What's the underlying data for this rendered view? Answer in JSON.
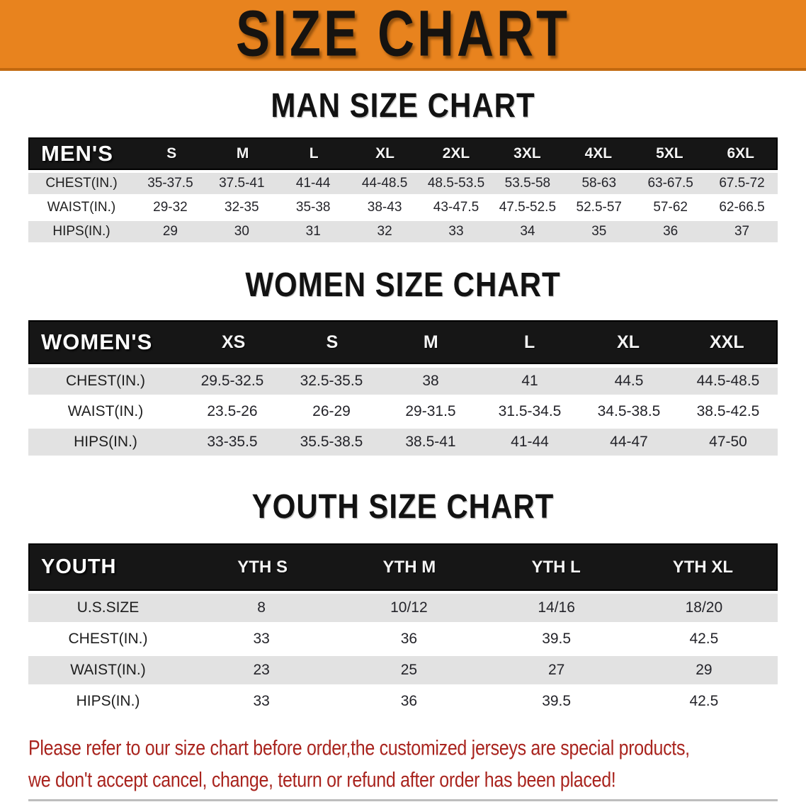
{
  "banner": {
    "title": "SIZE CHART",
    "bg_color": "#e8831e",
    "text_color": "#161310"
  },
  "sections": [
    {
      "heading": "MAN SIZE CHART",
      "table": {
        "header_label": "MEN'S",
        "columns": [
          "S",
          "M",
          "L",
          "XL",
          "2XL",
          "3XL",
          "4XL",
          "5XL",
          "6XL"
        ],
        "rows": [
          {
            "label": "CHEST(IN.)",
            "values": [
              "35-37.5",
              "37.5-41",
              "41-44",
              "44-48.5",
              "48.5-53.5",
              "53.5-58",
              "58-63",
              "63-67.5",
              "67.5-72"
            ]
          },
          {
            "label": "WAIST(IN.)",
            "values": [
              "29-32",
              "32-35",
              "35-38",
              "38-43",
              "43-47.5",
              "47.5-52.5",
              "52.5-57",
              "57-62",
              "62-66.5"
            ]
          },
          {
            "label": "HIPS(IN.)",
            "values": [
              "29",
              "30",
              "31",
              "32",
              "33",
              "34",
              "35",
              "36",
              "37"
            ]
          }
        ]
      }
    },
    {
      "heading": "WOMEN SIZE CHART",
      "table": {
        "header_label": "WOMEN'S",
        "columns": [
          "XS",
          "S",
          "M",
          "L",
          "XL",
          "XXL"
        ],
        "rows": [
          {
            "label": "CHEST(IN.)",
            "values": [
              "29.5-32.5",
              "32.5-35.5",
              "38",
              "41",
              "44.5",
              "44.5-48.5"
            ]
          },
          {
            "label": "WAIST(IN.)",
            "values": [
              "23.5-26",
              "26-29",
              "29-31.5",
              "31.5-34.5",
              "34.5-38.5",
              "38.5-42.5"
            ]
          },
          {
            "label": "HIPS(IN.)",
            "values": [
              "33-35.5",
              "35.5-38.5",
              "38.5-41",
              "41-44",
              "44-47",
              "47-50"
            ]
          }
        ]
      }
    },
    {
      "heading": "YOUTH SIZE CHART",
      "table": {
        "header_label": "YOUTH",
        "columns": [
          "YTH S",
          "YTH M",
          "YTH L",
          "YTH XL"
        ],
        "rows": [
          {
            "label": "U.S.SIZE",
            "values": [
              "8",
              "10/12",
              "14/16",
              "18/20"
            ]
          },
          {
            "label": "CHEST(IN.)",
            "values": [
              "33",
              "36",
              "39.5",
              "42.5"
            ]
          },
          {
            "label": "WAIST(IN.)",
            "values": [
              "23",
              "25",
              "27",
              "29"
            ]
          },
          {
            "label": "HIPS(IN.)",
            "values": [
              "33",
              "36",
              "39.5",
              "42.5"
            ]
          }
        ]
      }
    }
  ],
  "disclaimer": {
    "line1": "Please refer to our size chart before order,the customized jerseys are special products,",
    "line2": "we don't accept cancel, change, teturn or refund after order has been placed!",
    "color": "#a9241e"
  },
  "row_colors": {
    "shaded": "#e2e2e2",
    "plain": "#ffffff",
    "header_band": "#161616"
  }
}
